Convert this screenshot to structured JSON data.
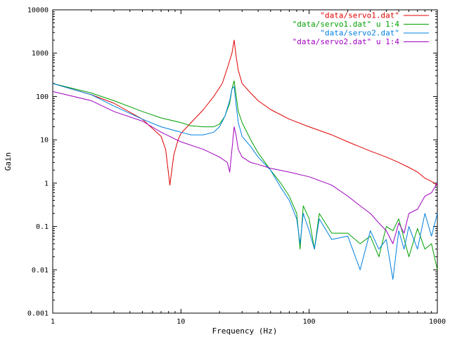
{
  "chart_data": {
    "type": "line",
    "xlabel": "Frequency (Hz)",
    "ylabel": "Gain",
    "xscale": "log",
    "yscale": "log",
    "xlim": [
      1,
      1000
    ],
    "ylim": [
      0.001,
      10000
    ],
    "grid": false,
    "legend_position": "top-right",
    "x_ticks": [
      "1",
      "10",
      "100",
      "1000"
    ],
    "y_ticks": [
      "0.001",
      "0.01",
      "0.1",
      "1",
      "10",
      "100",
      "1000",
      "10000"
    ],
    "series": [
      {
        "name": "\"data/servo1.dat\"",
        "color": "#e00000",
        "x": [
          1,
          2,
          3,
          5,
          7,
          7.6,
          8.2,
          8.8,
          9.5,
          10,
          12,
          15,
          18,
          21,
          23,
          25,
          26,
          27,
          28,
          30,
          35,
          40,
          50,
          70,
          100,
          150,
          200,
          300,
          400,
          500,
          600,
          700,
          800,
          900,
          1000
        ],
        "y": [
          200,
          110,
          70,
          30,
          12,
          6,
          0.9,
          4.5,
          10,
          14,
          25,
          50,
          100,
          200,
          450,
          1000,
          2000,
          800,
          400,
          200,
          120,
          80,
          50,
          30,
          20,
          13,
          9,
          5.5,
          4,
          3,
          2.3,
          1.8,
          1.3,
          1.1,
          0.9
        ]
      },
      {
        "name": "\"data/servo1.dat\" u 1:4",
        "color": "#00a000",
        "x": [
          1,
          2,
          3,
          5,
          7,
          10,
          12,
          15,
          18,
          20,
          22,
          24,
          25,
          26,
          27,
          28,
          30,
          35,
          40,
          50,
          60,
          70,
          80,
          85,
          90,
          100,
          110,
          120,
          150,
          200,
          250,
          300,
          350,
          400,
          450,
          500,
          600,
          700,
          800,
          900,
          1000
        ],
        "y": [
          200,
          120,
          80,
          45,
          32,
          25,
          21,
          20,
          20,
          23,
          35,
          70,
          150,
          230,
          100,
          45,
          25,
          10,
          5,
          2,
          1,
          0.5,
          0.2,
          0.03,
          0.3,
          0.15,
          0.03,
          0.2,
          0.07,
          0.07,
          0.04,
          0.06,
          0.02,
          0.1,
          0.08,
          0.15,
          0.02,
          0.09,
          0.03,
          0.04,
          0.01
        ]
      },
      {
        "name": "\"data/servo2.dat\"",
        "color": "#0080e0",
        "x": [
          1,
          2,
          3,
          5,
          7,
          10,
          12,
          15,
          18,
          20,
          22,
          24,
          25,
          26,
          27,
          28,
          30,
          35,
          40,
          50,
          60,
          70,
          80,
          85,
          90,
          100,
          110,
          120,
          150,
          200,
          250,
          300,
          350,
          400,
          450,
          500,
          550,
          600,
          700,
          800,
          900,
          1000
        ],
        "y": [
          200,
          110,
          60,
          30,
          20,
          15,
          13,
          13,
          15,
          20,
          35,
          80,
          150,
          170,
          60,
          25,
          12,
          7,
          4,
          2,
          0.8,
          0.4,
          0.15,
          0.04,
          0.2,
          0.08,
          0.03,
          0.15,
          0.05,
          0.06,
          0.01,
          0.08,
          0.03,
          0.05,
          0.006,
          0.08,
          0.03,
          0.1,
          0.03,
          0.2,
          0.06,
          0.2
        ]
      },
      {
        "name": "\"data/servo2.dat\" u 1:4",
        "color": "#a000c0",
        "x": [
          1,
          2,
          3,
          5,
          7,
          10,
          15,
          20,
          23,
          24,
          25,
          26,
          27,
          28,
          30,
          35,
          40,
          50,
          70,
          100,
          150,
          200,
          250,
          300,
          350,
          400,
          450,
          500,
          550,
          600,
          700,
          800,
          900,
          1000
        ],
        "y": [
          130,
          80,
          45,
          27,
          15,
          9,
          6,
          4,
          3,
          1.8,
          6,
          20,
          12,
          6,
          4,
          3,
          2.7,
          2.2,
          1.8,
          1.4,
          0.9,
          0.5,
          0.3,
          0.2,
          0.12,
          0.08,
          0.04,
          0.12,
          0.07,
          0.2,
          0.25,
          0.5,
          0.6,
          1
        ]
      }
    ]
  }
}
